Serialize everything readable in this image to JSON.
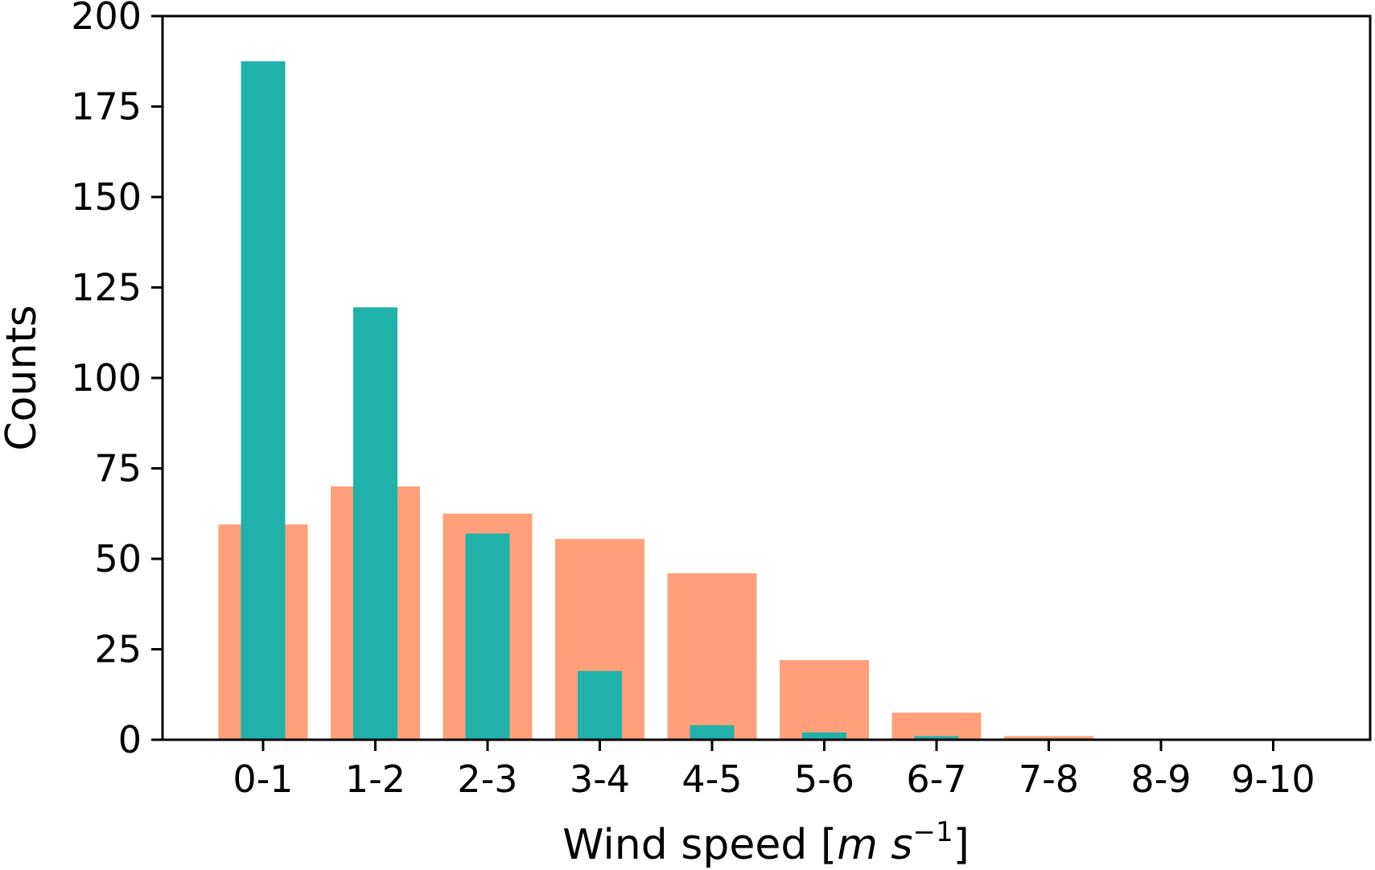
{
  "chart_data": {
    "type": "bar",
    "categories": [
      "0-1",
      "1-2",
      "2-3",
      "3-4",
      "4-5",
      "5-6",
      "6-7",
      "7-8",
      "8-9",
      "9-10"
    ],
    "series": [
      {
        "values": [
          59.5,
          70,
          62.5,
          55.5,
          46,
          22,
          7.5,
          1,
          0.3,
          0
        ],
        "color": "#FFA07A"
      },
      {
        "values": [
          187.5,
          119.5,
          57,
          19,
          4,
          2,
          1,
          0,
          0,
          0
        ],
        "color": "#20B2AA"
      }
    ],
    "title": "",
    "xlabel": {
      "main": "Wind speed [",
      "m": "m",
      "s": "s",
      "exp": "−1",
      "close": "]"
    },
    "ylabel": "Counts",
    "ylim": [
      0,
      200
    ],
    "yticks": [
      "0",
      "25",
      "50",
      "75",
      "100",
      "125",
      "150",
      "175",
      "200"
    ],
    "grid": false,
    "legend": "none"
  }
}
